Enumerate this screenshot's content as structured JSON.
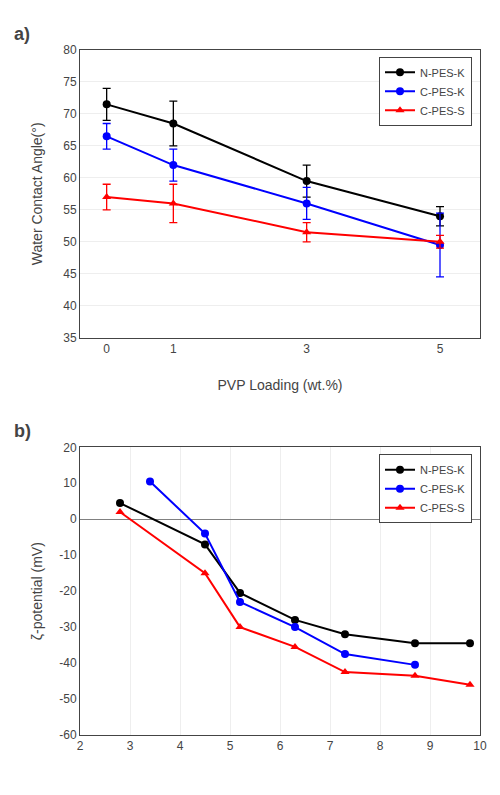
{
  "chart_data": [
    {
      "type": "line",
      "title": "a)",
      "x": [
        0,
        1,
        3,
        5
      ],
      "series": [
        {
          "name": "N-PES-K",
          "color": "black",
          "marker": "circle",
          "values": [
            71.5,
            68.5,
            59.5,
            54.0
          ],
          "yerr": [
            2.5,
            3.5,
            2.5,
            1.5
          ]
        },
        {
          "name": "C-PES-K",
          "color": "blue",
          "marker": "circle",
          "values": [
            66.5,
            62.0,
            56.0,
            49.5
          ],
          "yerr": [
            2.0,
            2.5,
            2.5,
            5.0
          ]
        },
        {
          "name": "C-PES-S",
          "color": "red",
          "marker": "triangle-up",
          "values": [
            57.0,
            56.0,
            51.5,
            50.0
          ],
          "yerr": [
            2.0,
            3.0,
            1.5,
            1.0
          ]
        }
      ],
      "xlabel": "PVP Loading (wt.%)",
      "ylabel": "Water Contact Angle(°)",
      "xlim": [
        -0.4,
        5.6
      ],
      "xticks": [
        0,
        1,
        3,
        5
      ],
      "ylim": [
        35,
        80
      ],
      "yticks": [
        35,
        40,
        45,
        50,
        55,
        60,
        65,
        70,
        75,
        80
      ],
      "grid": "y",
      "legend": "upper right"
    },
    {
      "type": "line",
      "title": "b)",
      "x": [
        2.8,
        3.4,
        4.5,
        5.2,
        6.3,
        7.3,
        8.7,
        9.8
      ],
      "series": [
        {
          "name": "N-PES-K",
          "color": "black",
          "marker": "circle",
          "values": [
            4.5,
            null,
            -7.0,
            -20.5,
            -28.0,
            -32.0,
            -34.5,
            -34.5
          ]
        },
        {
          "name": "C-PES-K",
          "color": "blue",
          "marker": "circle",
          "values": [
            null,
            10.5,
            -4.0,
            -23.0,
            -30.0,
            -37.5,
            -40.5,
            null
          ]
        },
        {
          "name": "C-PES-S",
          "color": "red",
          "marker": "triangle-up",
          "values": [
            2.0,
            null,
            -15.0,
            -30.0,
            -35.5,
            -42.5,
            -43.5,
            -46.0
          ]
        }
      ],
      "ylabel": "ζ-potential (mV)",
      "xlim": [
        2,
        10
      ],
      "xticks": [
        2,
        3,
        4,
        5,
        6,
        7,
        8,
        9,
        10
      ],
      "ylim": [
        -60,
        20
      ],
      "yticks": [
        -60,
        -50,
        -40,
        -30,
        -20,
        -10,
        0,
        10,
        20
      ],
      "grid": "x",
      "legend": "upper right"
    }
  ]
}
